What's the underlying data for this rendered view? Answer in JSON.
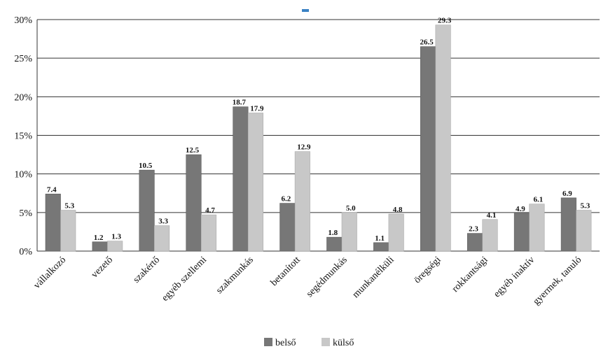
{
  "chart_data": {
    "type": "bar",
    "categories": [
      "vállalkozó",
      "vezető",
      "szakértő",
      "egyéb szellemi",
      "szakmunkás",
      "betanított",
      "segédmunkás",
      "munkanélküli",
      "öregségi",
      "rokkantsági",
      "egyéb inaktív",
      "gyermek, tanuló"
    ],
    "series": [
      {
        "name": "belső",
        "values": [
          7.4,
          1.2,
          10.5,
          12.5,
          18.7,
          6.2,
          1.8,
          1.1,
          26.5,
          2.3,
          4.9,
          6.9
        ]
      },
      {
        "name": "külső",
        "values": [
          5.3,
          1.3,
          3.3,
          4.7,
          17.9,
          12.9,
          5.0,
          4.8,
          29.3,
          4.1,
          6.1,
          5.3
        ]
      }
    ],
    "data_labels": [
      [
        "7.4",
        "1.2",
        "10.5",
        "12.5",
        "18.7",
        "6.2",
        "1.8",
        "1.1",
        "26.5",
        "2.3",
        "4.9",
        "6.9"
      ],
      [
        "5.3",
        "1.3",
        "3.3",
        "4.7",
        "17.9",
        "12.9",
        "5.0",
        "4.8",
        "29.3",
        "4.1",
        "6.1",
        "5.3"
      ]
    ],
    "y_ticks": [
      0,
      5,
      10,
      15,
      20,
      25,
      30
    ],
    "y_tick_labels": [
      "0%",
      "5%",
      "10%",
      "15%",
      "20%",
      "25%",
      "30%"
    ],
    "ylim": [
      0,
      30
    ],
    "grid": true,
    "legend_position": "bottom",
    "title": "",
    "xlabel": "",
    "ylabel": "",
    "colors": {
      "belső": "#777777",
      "külső": "#c8c8c8",
      "grid": "#333333"
    }
  }
}
